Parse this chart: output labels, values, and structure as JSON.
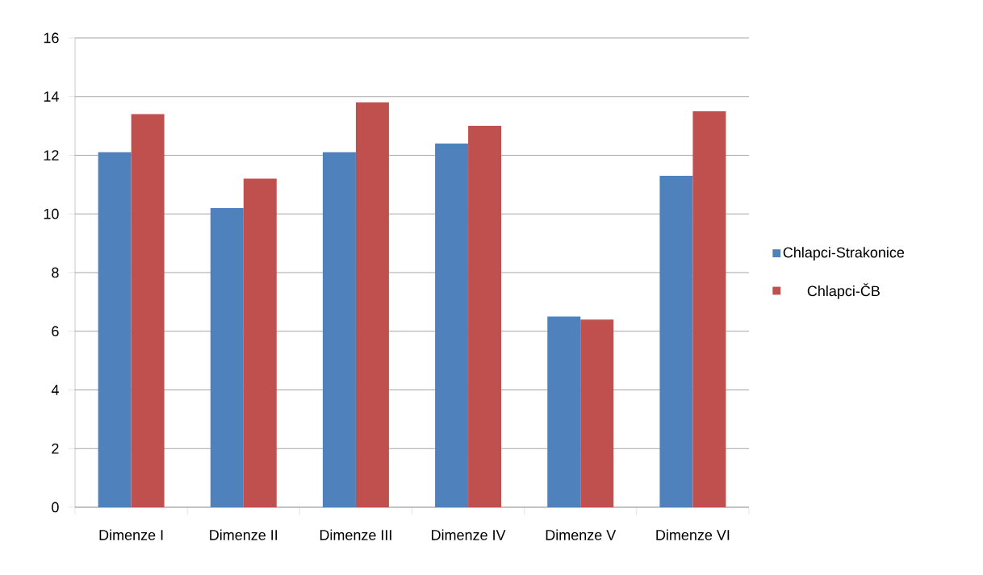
{
  "chart_data": {
    "type": "bar",
    "categories": [
      "Dimenze I",
      "Dimenze II",
      "Dimenze III",
      "Dimenze IV",
      "Dimenze V",
      "Dimenze VI"
    ],
    "series": [
      {
        "name": "Chlapci-Strakonice",
        "color": "#4f81bd",
        "values": [
          12.1,
          10.2,
          12.1,
          12.4,
          6.5,
          11.3
        ]
      },
      {
        "name": "Chlapci-ČB",
        "color": "#c0504d",
        "values": [
          13.4,
          11.2,
          13.8,
          13.0,
          6.4,
          13.5
        ]
      }
    ],
    "ylim": [
      0,
      16
    ],
    "yticks": [
      0,
      2,
      4,
      6,
      8,
      10,
      12,
      14,
      16
    ],
    "grid": "y",
    "legend": "right"
  }
}
